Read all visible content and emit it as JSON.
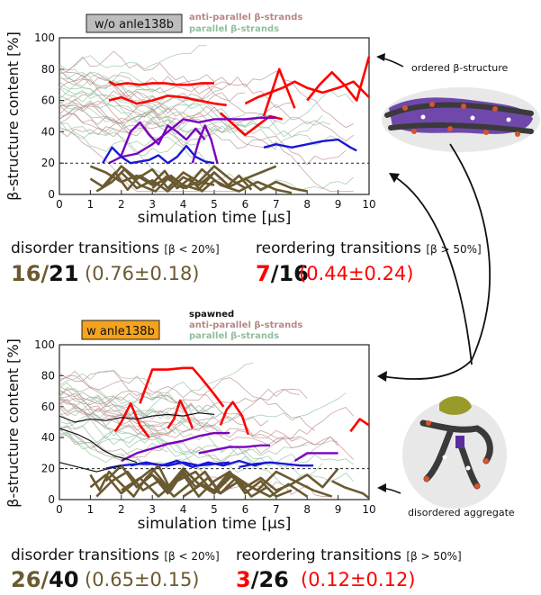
{
  "colors": {
    "brown": "#6b5a31",
    "red": "#ff0000",
    "antiparallel": "#b78787",
    "parallel": "#8fbf9c",
    "purple": "#7a00c0",
    "blue": "#1a18d6",
    "black": "#111111"
  },
  "chart_data": [
    {
      "type": "line",
      "tag": "w/o anle138b",
      "tag_color": "#bdbdbd",
      "legend": [
        "anti-parallel β-strands",
        "parallel β-strands"
      ],
      "xlabel": "simulation time [μs]",
      "ylabel": "β-structure content [%]",
      "xlim": [
        0,
        10
      ],
      "ylim": [
        0,
        100
      ],
      "xticks": [
        "0",
        "1",
        "2",
        "3",
        "4",
        "5",
        "6",
        "7",
        "8",
        "9",
        "10"
      ],
      "yticks": [
        "0",
        "20",
        "40",
        "60",
        "80",
        "100"
      ],
      "threshold": 20,
      "series": [
        {
          "kind": "red",
          "x": [
            1.6,
            1.8,
            2.2,
            2.6,
            3.0,
            3.4,
            3.8,
            4.2,
            4.6,
            5.0
          ],
          "y": [
            72,
            70,
            71,
            70,
            71,
            71,
            70,
            70,
            71,
            71
          ]
        },
        {
          "kind": "red",
          "x": [
            1.6,
            2.0,
            2.5,
            3.0,
            3.5,
            4.0,
            4.5,
            5.0,
            5.4
          ],
          "y": [
            60,
            62,
            58,
            60,
            63,
            62,
            60,
            58,
            57
          ]
        },
        {
          "kind": "red",
          "x": [
            6.0,
            6.4,
            6.8,
            7.2,
            7.6,
            8.0,
            8.5,
            9.0,
            9.5,
            9.8,
            10.0
          ],
          "y": [
            58,
            62,
            65,
            68,
            72,
            68,
            65,
            68,
            72,
            66,
            62
          ]
        },
        {
          "kind": "red",
          "x": [
            8.0,
            8.4,
            8.8,
            9.2,
            9.6,
            10.0
          ],
          "y": [
            60,
            70,
            78,
            70,
            60,
            88
          ]
        },
        {
          "kind": "red",
          "x": [
            5.2,
            5.6,
            6.0,
            6.4,
            6.8,
            7.2
          ],
          "y": [
            52,
            45,
            38,
            44,
            50,
            48
          ]
        },
        {
          "kind": "red",
          "x": [
            6.6,
            6.9,
            7.1,
            7.3,
            7.6
          ],
          "y": [
            50,
            68,
            80,
            70,
            55
          ]
        },
        {
          "kind": "purple",
          "x": [
            1.6,
            2.0,
            2.5,
            3.0,
            3.5,
            4.0,
            4.5,
            5.0,
            5.5,
            6.0,
            6.5,
            7.0
          ],
          "y": [
            20,
            24,
            26,
            32,
            40,
            48,
            46,
            48,
            48,
            48,
            49,
            49
          ]
        },
        {
          "kind": "purple",
          "x": [
            2.0,
            2.3,
            2.6,
            2.9,
            3.2,
            3.5,
            3.8,
            4.1,
            4.4,
            4.7
          ],
          "y": [
            25,
            40,
            46,
            38,
            32,
            44,
            40,
            35,
            42,
            35
          ]
        },
        {
          "kind": "purple",
          "x": [
            4.3,
            4.5,
            4.7,
            4.9,
            5.1
          ],
          "y": [
            20,
            34,
            44,
            35,
            20
          ]
        },
        {
          "kind": "blue",
          "x": [
            1.4,
            1.7,
            2.0,
            2.3,
            2.6,
            2.9,
            3.2,
            3.5,
            3.8,
            4.1,
            4.4,
            4.7,
            5.0
          ],
          "y": [
            20,
            30,
            24,
            20,
            21,
            22,
            25,
            20,
            24,
            31,
            24,
            21,
            20
          ]
        },
        {
          "kind": "blue",
          "x": [
            6.6,
            7.0,
            7.5,
            8.0,
            8.5,
            9.0,
            9.4,
            9.6
          ],
          "y": [
            30,
            32,
            30,
            32,
            34,
            35,
            30,
            28
          ]
        },
        {
          "kind": "brown",
          "x": [
            1.0,
            1.5,
            2.0,
            2.5,
            3.0,
            3.5,
            4.0,
            4.5,
            5.0
          ],
          "y": [
            18,
            14,
            8,
            12,
            6,
            10,
            4,
            8,
            6
          ]
        },
        {
          "kind": "brown",
          "x": [
            1.0,
            1.4,
            1.8,
            2.2,
            2.6,
            3.0,
            3.4,
            3.8,
            4.2,
            4.6,
            5.0,
            5.4,
            5.8,
            6.2
          ],
          "y": [
            10,
            5,
            14,
            3,
            12,
            7,
            15,
            4,
            10,
            2,
            9,
            5,
            12,
            3
          ]
        },
        {
          "kind": "brown",
          "x": [
            1.2,
            1.7,
            2.1,
            2.6,
            3.1,
            3.6,
            4.1,
            4.6,
            5.2,
            5.8,
            6.4,
            7.0,
            7.5
          ],
          "y": [
            2,
            8,
            16,
            6,
            2,
            12,
            4,
            16,
            6,
            2,
            8,
            3,
            1
          ]
        },
        {
          "kind": "brown",
          "x": [
            1.5,
            2.0,
            2.5,
            3.0,
            3.5,
            4.0,
            4.5,
            5.0,
            5.5,
            6.0
          ],
          "y": [
            6,
            18,
            10,
            16,
            4,
            14,
            8,
            18,
            10,
            4
          ]
        },
        {
          "kind": "brown",
          "x": [
            2.0,
            2.5,
            3.0,
            3.5,
            4.0,
            4.5,
            5.0,
            5.5,
            6.0,
            6.5,
            7.0,
            7.5,
            8.0
          ],
          "y": [
            14,
            4,
            9,
            2,
            11,
            6,
            14,
            5,
            10,
            3,
            8,
            4,
            2
          ]
        },
        {
          "kind": "brown",
          "x": [
            3.0,
            3.5,
            4.0,
            4.5,
            5.0,
            5.5,
            6.0,
            6.5,
            7.0
          ],
          "y": [
            4,
            12,
            6,
            3,
            14,
            5,
            10,
            14,
            18
          ]
        }
      ]
    },
    {
      "type": "line",
      "tag": "w anle138b",
      "tag_color": "#f5a21c",
      "legend": [
        "spawned",
        "anti-parallel β-strands",
        "parallel β-strands"
      ],
      "xlabel": "simulation time [μs]",
      "ylabel": "β-structure content [%]",
      "xlim": [
        0,
        10
      ],
      "ylim": [
        0,
        100
      ],
      "xticks": [
        "0",
        "1",
        "2",
        "3",
        "4",
        "5",
        "6",
        "7",
        "8",
        "9",
        "10"
      ],
      "yticks": [
        "0",
        "20",
        "40",
        "60",
        "80",
        "100"
      ],
      "threshold": 20,
      "series": [
        {
          "kind": "red",
          "x": [
            2.6,
            3.0,
            3.5,
            4.0,
            4.3,
            4.6,
            5.0,
            5.3
          ],
          "y": [
            62,
            84,
            84,
            85,
            85,
            78,
            68,
            60
          ]
        },
        {
          "kind": "red",
          "x": [
            1.8,
            2.0,
            2.3,
            2.6,
            2.9
          ],
          "y": [
            44,
            50,
            62,
            48,
            40
          ]
        },
        {
          "kind": "red",
          "x": [
            3.5,
            3.7,
            3.9,
            4.1,
            4.3
          ],
          "y": [
            46,
            52,
            64,
            56,
            46
          ]
        },
        {
          "kind": "red",
          "x": [
            5.2,
            5.4,
            5.6,
            5.9,
            6.1
          ],
          "y": [
            48,
            58,
            63,
            54,
            42
          ]
        },
        {
          "kind": "red",
          "x": [
            9.4,
            9.7,
            10.0
          ],
          "y": [
            44,
            52,
            48
          ]
        },
        {
          "kind": "purple",
          "x": [
            2.0,
            2.5,
            3.0,
            3.5,
            4.0,
            4.5,
            5.0,
            5.5
          ],
          "y": [
            25,
            30,
            33,
            36,
            38,
            41,
            43,
            43
          ]
        },
        {
          "kind": "purple",
          "x": [
            4.5,
            5.0,
            5.5,
            6.0,
            6.5,
            6.8
          ],
          "y": [
            30,
            32,
            34,
            34,
            35,
            35
          ]
        },
        {
          "kind": "purple",
          "x": [
            7.6,
            8.0,
            8.4,
            8.8,
            9.0
          ],
          "y": [
            25,
            30,
            30,
            30,
            30
          ]
        },
        {
          "kind": "blue",
          "x": [
            1.5,
            2.0,
            2.5,
            3.0,
            3.5,
            4.0,
            4.5,
            5.0,
            5.5
          ],
          "y": [
            20,
            22,
            23,
            23,
            22,
            24,
            22,
            23,
            24
          ]
        },
        {
          "kind": "blue",
          "x": [
            2.3,
            2.8,
            3.3,
            3.8,
            4.3,
            4.8,
            5.3,
            5.8,
            6.3,
            6.7
          ],
          "y": [
            22,
            24,
            22,
            25,
            21,
            24,
            22,
            25,
            22,
            24
          ]
        },
        {
          "kind": "blue",
          "x": [
            5.8,
            6.3,
            6.8,
            7.3,
            7.8,
            8.2
          ],
          "y": [
            21,
            23,
            24,
            23,
            22,
            22
          ]
        },
        {
          "kind": "brown",
          "x": [
            1.0,
            1.3,
            1.6,
            2.0,
            2.4,
            2.8,
            3.2,
            3.6,
            4.0,
            4.4,
            4.8,
            5.2
          ],
          "y": [
            16,
            6,
            18,
            10,
            2,
            14,
            22,
            6,
            18,
            8,
            14,
            4
          ]
        },
        {
          "kind": "brown",
          "x": [
            1.0,
            1.5,
            2.0,
            2.5,
            3.0,
            3.5,
            4.0,
            4.5,
            5.0,
            5.5,
            6.0
          ],
          "y": [
            8,
            16,
            4,
            12,
            20,
            8,
            16,
            2,
            12,
            18,
            6
          ]
        },
        {
          "kind": "brown",
          "x": [
            1.2,
            1.7,
            2.2,
            2.7,
            3.2,
            3.7,
            4.2,
            4.7,
            5.2,
            5.7,
            6.2,
            6.7
          ],
          "y": [
            2,
            12,
            18,
            6,
            12,
            2,
            10,
            18,
            4,
            14,
            2,
            8
          ]
        },
        {
          "kind": "brown",
          "x": [
            1.5,
            2.0,
            2.5,
            3.0,
            3.5,
            4.0,
            4.5,
            5.0,
            5.5,
            6.0,
            6.5,
            7.0,
            7.5
          ],
          "y": [
            12,
            22,
            8,
            16,
            4,
            20,
            10,
            6,
            18,
            4,
            12,
            2,
            6
          ]
        },
        {
          "kind": "brown",
          "x": [
            2.0,
            2.6,
            3.2,
            3.8,
            4.4,
            5.0,
            5.6,
            6.2,
            6.8,
            7.4,
            8.0
          ],
          "y": [
            6,
            14,
            2,
            12,
            18,
            4,
            16,
            8,
            2,
            10,
            2
          ]
        },
        {
          "kind": "brown",
          "x": [
            3.0,
            3.5,
            4.0,
            4.5,
            5.0,
            5.5,
            6.0,
            6.5,
            7.0,
            7.5,
            8.0,
            8.5,
            9.0
          ],
          "y": [
            16,
            8,
            20,
            10,
            4,
            16,
            8,
            14,
            6,
            10,
            16,
            8,
            20
          ]
        },
        {
          "kind": "brown",
          "x": [
            4.0,
            4.6,
            5.2,
            5.8,
            6.4,
            7.0,
            7.6,
            8.2,
            8.8
          ],
          "y": [
            2,
            10,
            4,
            12,
            6,
            18,
            12,
            6,
            2
          ]
        },
        {
          "kind": "brown",
          "x": [
            8.8,
            9.2,
            9.5,
            9.8,
            10.0
          ],
          "y": [
            12,
            8,
            6,
            4,
            1
          ]
        },
        {
          "kind": "black",
          "x": [
            0,
            0.5,
            1.0,
            1.5,
            2.0,
            2.5,
            3.0,
            3.5,
            4.0,
            4.5,
            5.0
          ],
          "y": [
            54,
            50,
            52,
            51,
            53,
            52,
            54,
            55,
            54,
            56,
            55
          ]
        },
        {
          "kind": "black",
          "x": [
            0,
            0.3,
            0.6,
            1.0,
            1.4,
            1.8,
            2.2,
            2.5
          ],
          "y": [
            46,
            44,
            42,
            38,
            32,
            28,
            26,
            24
          ]
        },
        {
          "kind": "black",
          "x": [
            0,
            0.4,
            0.8,
            1.2,
            1.6,
            2.0
          ],
          "y": [
            24,
            22,
            20,
            18,
            20,
            22
          ]
        }
      ]
    }
  ],
  "stats": [
    {
      "disorder_title": "disorder transitions",
      "disorder_cond": "[β < 20%]",
      "disorder_num": "16",
      "disorder_slash": "/",
      "disorder_den": "21",
      "disorder_ratio": "(0.76±0.18)",
      "reorder_title": "reordering transitions",
      "reorder_cond": "[β > 50%]",
      "reorder_num": "7",
      "reorder_slash": "/",
      "reorder_den": "16",
      "reorder_ratio": "(0.44±0.24)"
    },
    {
      "disorder_title": "disorder transitions",
      "disorder_cond": "[β < 20%]",
      "disorder_num": "26",
      "disorder_slash": "/",
      "disorder_den": "40",
      "disorder_ratio": "(0.65±0.15)",
      "reorder_title": "reordering transitions",
      "reorder_cond": "[β > 50%]",
      "reorder_num": "3",
      "reorder_slash": "/",
      "reorder_den": "26",
      "reorder_ratio": "(0.12±0.12)"
    }
  ],
  "annotations": {
    "ordered": "ordered β-structure",
    "disordered": "disordered aggregate"
  }
}
